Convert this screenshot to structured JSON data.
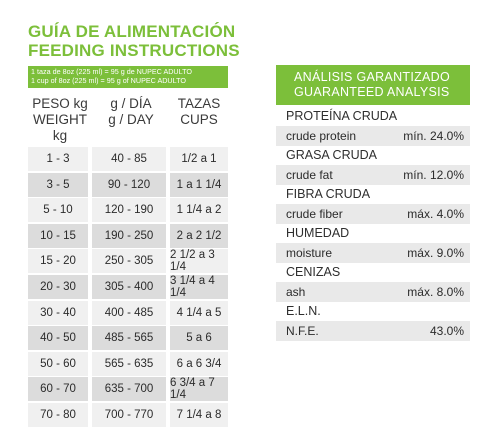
{
  "title_es": "GUÍA DE ALIMENTACIÓN",
  "title_en": "FEEDING INSTRUCTIONS",
  "note": [
    "1 taza de 8oz (225 ml) = 95 g de NUPEC ADULTO",
    "1 cup of 8oz (225 ml) = 95 g of NUPEC ADULTO"
  ],
  "headers": {
    "weight": [
      "PESO kg",
      "WEIGHT kg"
    ],
    "grams": [
      "g / DÍA",
      "g / DAY"
    ],
    "cups": [
      "TAZAS",
      "CUPS"
    ]
  },
  "rows": [
    {
      "weight": "1 - 3",
      "grams": "40 - 85",
      "cups": "1/2 a 1"
    },
    {
      "weight": "3 - 5",
      "grams": "90 - 120",
      "cups": "1 a 1 1/4"
    },
    {
      "weight": "5 - 10",
      "grams": "120 - 190",
      "cups": "1 1/4 a 2"
    },
    {
      "weight": "10 - 15",
      "grams": "190 - 250",
      "cups": "2 a 2 1/2"
    },
    {
      "weight": "15 - 20",
      "grams": "250 - 305",
      "cups": "2 1/2 a 3 1/4"
    },
    {
      "weight": "20 - 30",
      "grams": "305 - 400",
      "cups": "3 1/4 a 4 1/4"
    },
    {
      "weight": "30 - 40",
      "grams": "400 - 485",
      "cups": "4 1/4 a 5"
    },
    {
      "weight": "40 - 50",
      "grams": "485 - 565",
      "cups": "5 a 6"
    },
    {
      "weight": "50 - 60",
      "grams": "565 - 635",
      "cups": "6 a 6 3/4"
    },
    {
      "weight": "60 - 70",
      "grams": "635 - 700",
      "cups": "6 3/4 a 7 1/4"
    },
    {
      "weight": "70 - 80",
      "grams": "700 - 770",
      "cups": "7 1/4 a 8"
    }
  ],
  "analysis": {
    "title_es": "ANÁLISIS GARANTIZADO",
    "title_en": "GUARANTEED ANALYSIS",
    "items": [
      {
        "label": "PROTEÍNA CRUDA",
        "name": "crude protein",
        "value": "mín. 24.0%"
      },
      {
        "label": "GRASA CRUDA",
        "name": "crude fat",
        "value": "mín. 12.0%"
      },
      {
        "label": "FIBRA CRUDA",
        "name": "crude fiber",
        "value": "máx. 4.0%"
      },
      {
        "label": "HUMEDAD",
        "name": "moisture",
        "value": "máx. 9.0%"
      },
      {
        "label": "CENIZAS",
        "name": "ash",
        "value": "máx. 8.0%"
      },
      {
        "label": "E.L.N.",
        "name": "N.F.E.",
        "value": "43.0%"
      }
    ]
  },
  "colors": {
    "accent": "#7cbf3a",
    "cell": "#f0f0f0",
    "cell_alt": "#dcdcdc"
  }
}
